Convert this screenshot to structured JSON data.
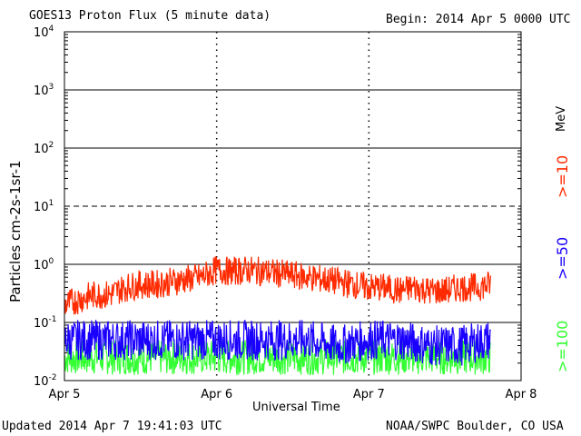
{
  "header": {
    "title": "GOES13 Proton Flux (5 minute data)",
    "begin": "Begin: 2014 Apr 5 0000 UTC"
  },
  "footer": {
    "updated": "Updated 2014 Apr  7 19:41:03 UTC",
    "source": "NOAA/SWPC Boulder, CO USA"
  },
  "legend": {
    "unit": "MeV",
    "items": [
      {
        "label": ">=10",
        "color": "#ff2a00"
      },
      {
        "label": ">=50",
        "color": "#1a00ff"
      },
      {
        "label": ">=100",
        "color": "#33ff33"
      }
    ]
  },
  "chart_data": {
    "type": "line",
    "title": "GOES13 Proton Flux (5 minute data)",
    "xlabel": "Universal Time",
    "ylabel": "Particles cm-2s-1sr-1",
    "y_scale": "log",
    "ylim": [
      0.01,
      10000
    ],
    "y_ticks": [
      0.01,
      0.1,
      1,
      10,
      100,
      1000,
      10000
    ],
    "y_tick_labels": [
      {
        "base": "10",
        "exp": "-2"
      },
      {
        "base": "10",
        "exp": "-1"
      },
      {
        "base": "10",
        "exp": "0"
      },
      {
        "base": "10",
        "exp": "1"
      },
      {
        "base": "10",
        "exp": "2"
      },
      {
        "base": "10",
        "exp": "3"
      },
      {
        "base": "10",
        "exp": "4"
      }
    ],
    "x_tick_labels": [
      "Apr 5",
      "Apr 6",
      "Apr 7",
      "Apr 8"
    ],
    "x_range_days": [
      0,
      3
    ],
    "grid": true,
    "series": [
      {
        "name": ">=10 MeV",
        "color": "#ff2a00",
        "x": [
          0,
          0.1,
          0.2,
          0.3,
          0.4,
          0.5,
          0.6,
          0.7,
          0.8,
          0.9,
          1.0,
          1.1,
          1.2,
          1.3,
          1.4,
          1.5,
          1.6,
          1.7,
          1.8,
          1.9,
          2.0,
          2.1,
          2.2,
          2.3,
          2.4,
          2.5,
          2.6,
          2.7,
          2.8
        ],
        "values": [
          0.2,
          0.25,
          0.3,
          0.3,
          0.4,
          0.45,
          0.45,
          0.5,
          0.55,
          0.6,
          0.8,
          0.75,
          0.8,
          0.75,
          0.7,
          0.65,
          0.6,
          0.55,
          0.5,
          0.45,
          0.4,
          0.4,
          0.35,
          0.4,
          0.35,
          0.35,
          0.4,
          0.4,
          0.45
        ]
      },
      {
        "name": ">=50 MeV",
        "color": "#1a00ff",
        "x": [
          0,
          0.2,
          0.4,
          0.6,
          0.8,
          1.0,
          1.2,
          1.4,
          1.6,
          1.8,
          2.0,
          2.2,
          2.4,
          2.6,
          2.8
        ],
        "values": [
          0.05,
          0.05,
          0.05,
          0.05,
          0.05,
          0.05,
          0.05,
          0.05,
          0.05,
          0.04,
          0.05,
          0.05,
          0.04,
          0.04,
          0.05
        ]
      },
      {
        "name": ">=100 MeV",
        "color": "#33ff33",
        "x": [
          0,
          0.2,
          0.4,
          0.6,
          0.8,
          1.0,
          1.2,
          1.4,
          1.6,
          1.8,
          2.0,
          2.2,
          2.4,
          2.6,
          2.8
        ],
        "values": [
          0.025,
          0.025,
          0.025,
          0.025,
          0.025,
          0.025,
          0.025,
          0.025,
          0.025,
          0.025,
          0.025,
          0.025,
          0.025,
          0.025,
          0.025
        ]
      }
    ]
  }
}
